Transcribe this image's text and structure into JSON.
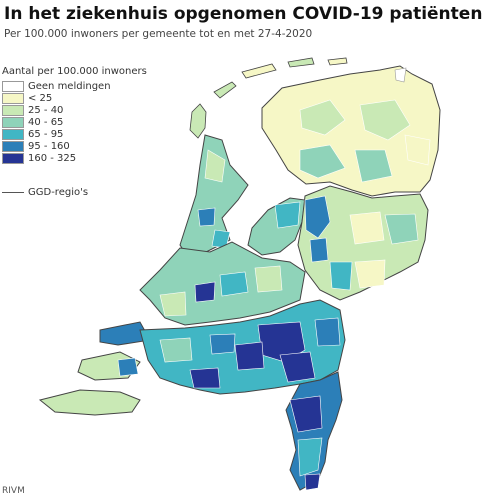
{
  "title": "In het ziekenhuis opgenomen COVID-19 patiënten",
  "subtitle": "Per 100.000 inwoners per gemeente tot en met 27-4-2020",
  "legend": {
    "title": "Aantal per 100.000 inwoners",
    "items": [
      {
        "label": "Geen meldingen",
        "color": "#ffffff"
      },
      {
        "label": "< 25",
        "color": "#f6f7c6"
      },
      {
        "label": "25 - 40",
        "color": "#c9e9b5"
      },
      {
        "label": "40 - 65",
        "color": "#8fd3b9"
      },
      {
        "label": "65 - 95",
        "color": "#41b6c4"
      },
      {
        "label": "95 - 160",
        "color": "#2c7fb8"
      },
      {
        "label": "160 - 325",
        "color": "#253494"
      }
    ],
    "region_line_label": "GGD-regio's"
  },
  "source": "RIVM",
  "colors": {
    "water": "#ffffff",
    "border": "#444444",
    "municipality_border": "#ffffff"
  }
}
